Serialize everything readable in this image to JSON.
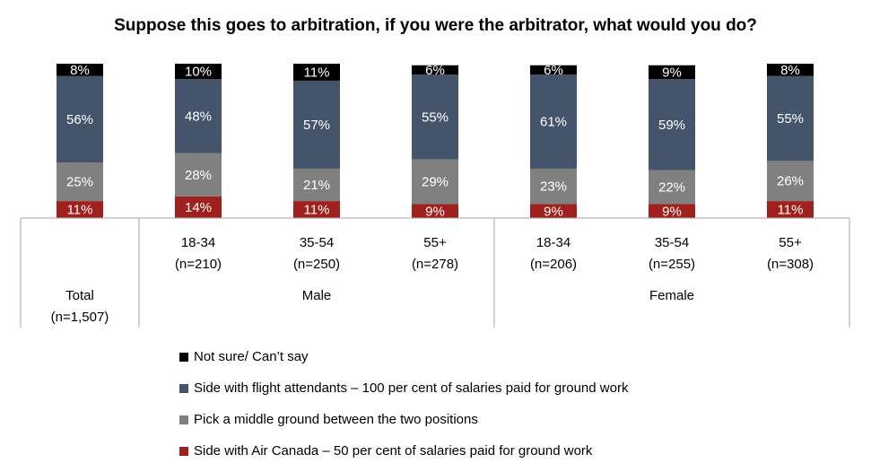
{
  "chart_data": {
    "type": "bar",
    "stacked": true,
    "percent_labels": true,
    "title": "Suppose this goes to arbitration, if you were the arbitrator, what would you do?",
    "categories": [
      {
        "label": "",
        "n": "",
        "group": "Total",
        "n_group": "(n=1,507)"
      },
      {
        "label": "18-34",
        "n": "(n=210)",
        "group": "Male"
      },
      {
        "label": "35-54",
        "n": "(n=250)",
        "group": "Male"
      },
      {
        "label": "55+",
        "n": "(n=278)",
        "group": "Male"
      },
      {
        "label": "18-34",
        "n": "(n=206)",
        "group": "Female"
      },
      {
        "label": "35-54",
        "n": "(n=255)",
        "group": "Female"
      },
      {
        "label": "55+",
        "n": "(n=308)",
        "group": "Female"
      }
    ],
    "groups": [
      {
        "label": "Total",
        "sublabel": "(n=1,507)"
      },
      {
        "label": "Male",
        "sublabel": ""
      },
      {
        "label": "Female",
        "sublabel": ""
      }
    ],
    "series": [
      {
        "name": "Side with Air Canada – 50 per cent of salaries paid for ground work",
        "color": "#a0201e",
        "text_color": "#ffffff",
        "values": [
          11,
          14,
          11,
          9,
          9,
          9,
          11
        ]
      },
      {
        "name": "Pick a middle ground between the two positions",
        "color": "#808080",
        "text_color": "#ffffff",
        "values": [
          25,
          28,
          21,
          29,
          23,
          22,
          26
        ]
      },
      {
        "name": "Side with flight attendants – 100 per cent of salaries paid for ground work",
        "color": "#44546a",
        "text_color": "#ffffff",
        "values": [
          56,
          48,
          57,
          55,
          61,
          59,
          55
        ]
      },
      {
        "name": "Not sure/ Can’t say",
        "color": "#000000",
        "text_color": "#ffffff",
        "values": [
          8,
          10,
          11,
          6,
          6,
          9,
          8
        ]
      }
    ],
    "legend_order": [
      3,
      2,
      1,
      0
    ],
    "legend_position": "bottom",
    "ylim": [
      0,
      100
    ],
    "grid": false
  }
}
